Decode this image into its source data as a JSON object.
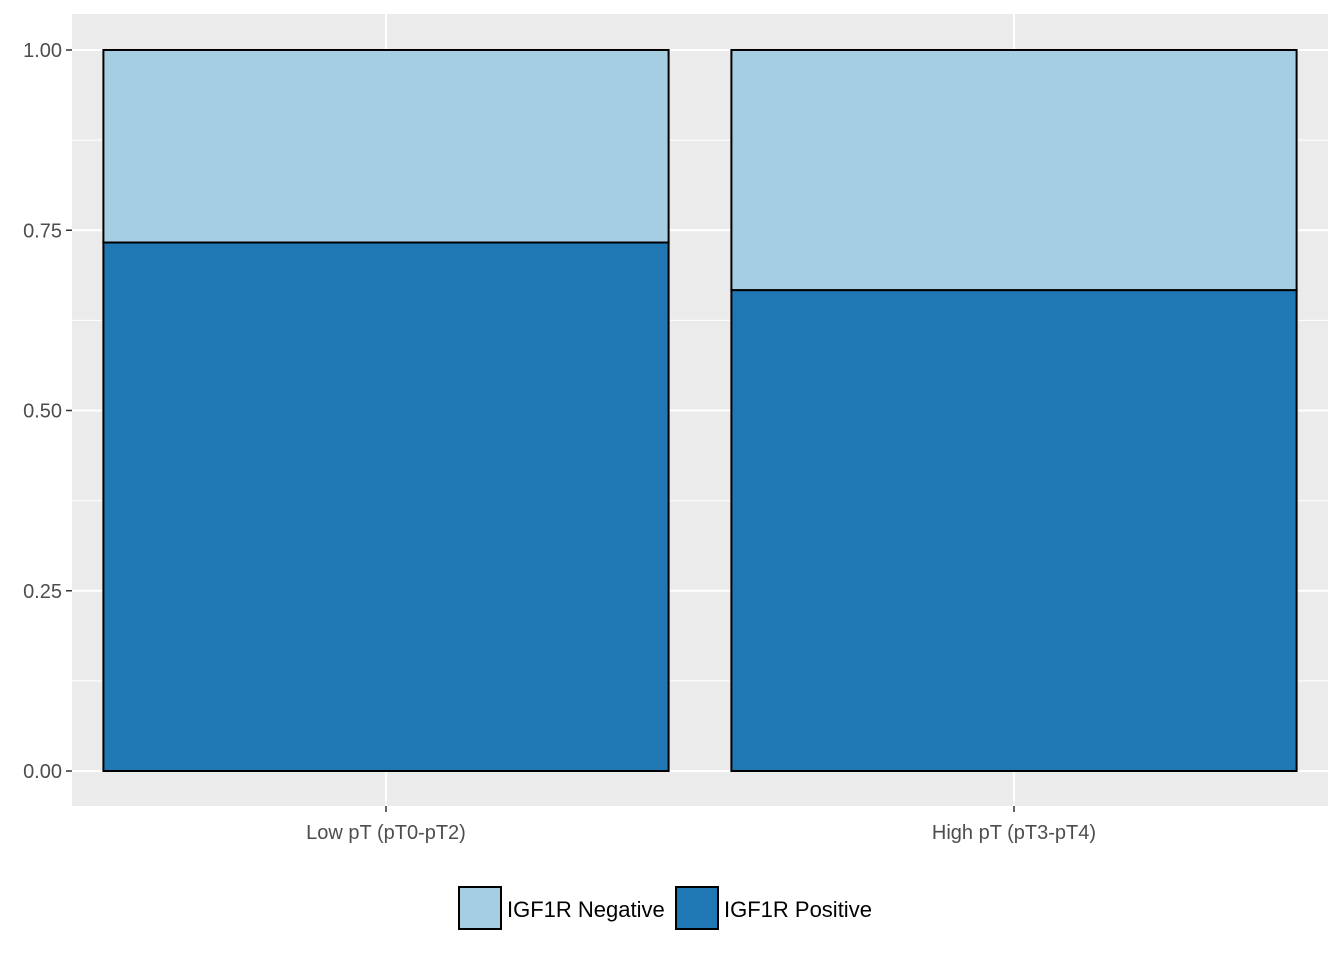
{
  "chart_data": {
    "type": "bar",
    "stacked": true,
    "categories": [
      "Low pT (pT0-pT2)",
      "High pT (pT3-pT4)"
    ],
    "series": [
      {
        "name": "IGF1R Positive",
        "values": [
          0.733,
          0.667
        ],
        "color": "#1f78b4"
      },
      {
        "name": "IGF1R Negative",
        "values": [
          0.267,
          0.333
        ],
        "color": "#a6cee3"
      }
    ],
    "legend_order": [
      "IGF1R Negative",
      "IGF1R Positive"
    ],
    "legend_position": "bottom",
    "title": "",
    "xlabel": "",
    "ylabel": "",
    "ylim": [
      -0.046,
      1.05
    ],
    "yticks": [
      0.0,
      0.25,
      0.5,
      0.75,
      1.0
    ],
    "ytick_labels": [
      "0.00",
      "0.25",
      "0.50",
      "0.75",
      "1.00"
    ],
    "grid": true,
    "panel_background": "#ebebeb",
    "bar_outline": "#000000"
  }
}
